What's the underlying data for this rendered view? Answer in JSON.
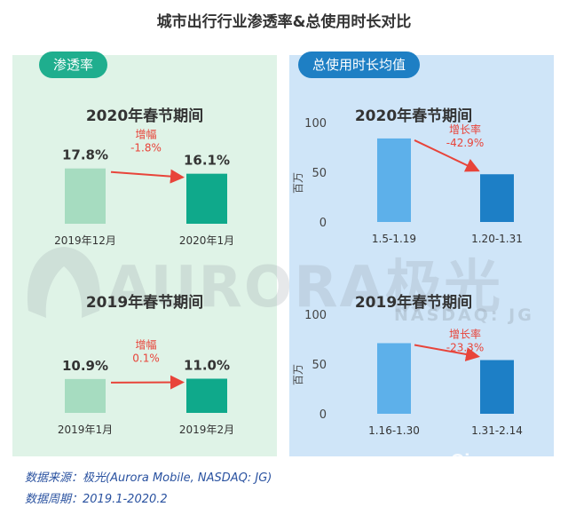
{
  "title": "城市出行行业渗透率&总使用时长对比",
  "left_panel": {
    "tab": "渗透率"
  },
  "right_panel": {
    "tab": "总使用时长均值"
  },
  "watermark": {
    "brand": "AURORA",
    "brand_cn": "极光",
    "ticker": "NASDAQ: JG"
  },
  "footer": {
    "source": "数据来源：极光(Aurora Mobile, NASDAQ: JG)",
    "period": "数据周期：2019.1-2020.2"
  },
  "corner_logo": "Qingua",
  "colors": {
    "green_light": "#a6dcc0",
    "green_dark": "#0fa98b",
    "blue_light": "#5db0ea",
    "blue_dark": "#1d7fc6",
    "arrow": "#e8443a"
  },
  "chart_data": [
    {
      "type": "bar",
      "title": "2020年春节期间",
      "categories": [
        "2019年12月",
        "2020年1月"
      ],
      "values": [
        17.8,
        16.1
      ],
      "data_labels": [
        "17.8%",
        "16.1%"
      ],
      "change_label": "增幅",
      "change_value": "-1.8%",
      "ylim": [
        0,
        20
      ]
    },
    {
      "type": "bar",
      "title": "2019年春节期间",
      "categories": [
        "2019年1月",
        "2019年2月"
      ],
      "values": [
        10.9,
        11.0
      ],
      "data_labels": [
        "10.9%",
        "11.0%"
      ],
      "change_label": "增幅",
      "change_value": "0.1%",
      "ylim": [
        0,
        20
      ]
    },
    {
      "type": "bar",
      "title": "2020年春节期间",
      "categories": [
        "1.5-1.19",
        "1.20-1.31"
      ],
      "values": [
        84,
        48
      ],
      "ylabel": "百万",
      "yticks": [
        0,
        50,
        100
      ],
      "ylim": [
        0,
        100
      ],
      "change_label": "增长率",
      "change_value": "-42.9%"
    },
    {
      "type": "bar",
      "title": "2019年春节期间",
      "categories": [
        "1.16-1.30",
        "1.31-2.14"
      ],
      "values": [
        71,
        54
      ],
      "ylabel": "百万",
      "yticks": [
        0,
        50,
        100
      ],
      "ylim": [
        0,
        100
      ],
      "change_label": "增长率",
      "change_value": "-23.3%"
    }
  ]
}
